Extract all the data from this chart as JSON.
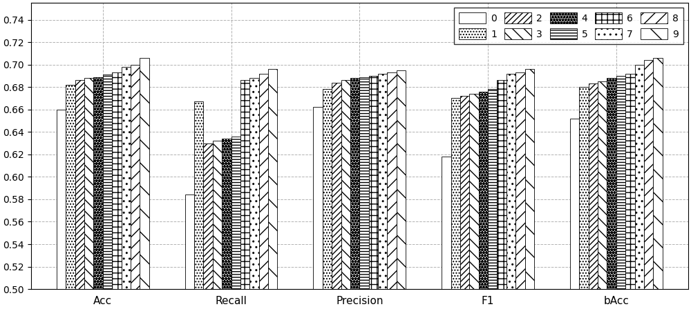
{
  "categories": [
    "Acc",
    "Recall",
    "Precision",
    "F1",
    "bAcc"
  ],
  "series_labels": [
    "0",
    "1",
    "2",
    "3",
    "4",
    "5",
    "6",
    "7",
    "8",
    "9"
  ],
  "hatch_patterns": [
    "",
    "oooo",
    "////",
    "\\\\",
    "****",
    "====",
    "xxxx",
    "....",
    "//",
    "\\"
  ],
  "values": {
    "Acc": [
      0.66,
      0.682,
      0.686,
      0.688,
      0.689,
      0.691,
      0.693,
      0.698,
      0.7,
      0.706
    ],
    "Recall": [
      0.584,
      0.667,
      0.63,
      0.632,
      0.634,
      0.636,
      0.686,
      0.688,
      0.692,
      0.696
    ],
    "Precision": [
      0.662,
      0.678,
      0.684,
      0.686,
      0.688,
      0.689,
      0.69,
      0.692,
      0.693,
      0.695
    ],
    "F1": [
      0.618,
      0.67,
      0.672,
      0.674,
      0.676,
      0.678,
      0.686,
      0.692,
      0.693,
      0.696
    ],
    "bAcc": [
      0.652,
      0.68,
      0.683,
      0.685,
      0.688,
      0.69,
      0.692,
      0.7,
      0.704,
      0.706
    ]
  },
  "ylim": [
    0.5,
    0.755
  ],
  "yticks": [
    0.5,
    0.52,
    0.54,
    0.56,
    0.58,
    0.6,
    0.62,
    0.64,
    0.66,
    0.68,
    0.7,
    0.72,
    0.74
  ],
  "bar_width": 0.072,
  "bar_color": "white",
  "edge_color": "black",
  "background_color": "white",
  "grid_color": "#aaaaaa",
  "figsize": [
    10.0,
    4.48
  ],
  "dpi": 100
}
